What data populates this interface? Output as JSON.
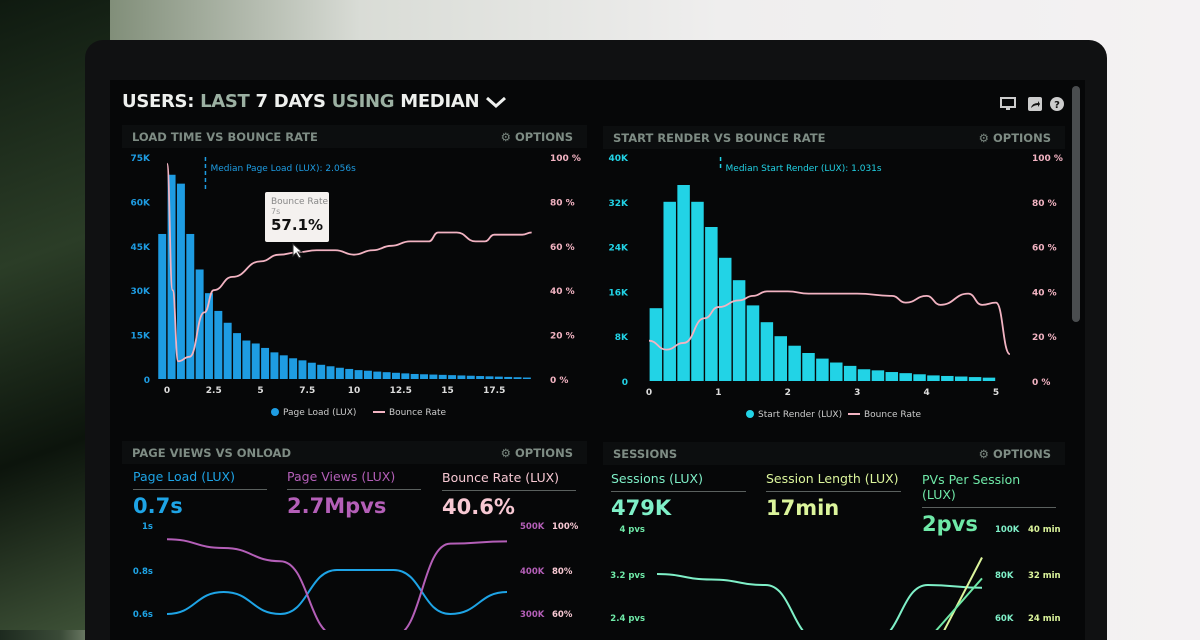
{
  "header": {
    "title_parts": [
      "USERS:",
      "LAST",
      "7 DAYS",
      "USING",
      "MEDIAN"
    ],
    "icons": [
      "monitor-icon",
      "share-icon",
      "help-icon"
    ]
  },
  "colors": {
    "load_bars": "#1e9ce2",
    "render_bars": "#22d3e6",
    "bounce": "#f2b3c2",
    "page_load": "#1ea4e6",
    "page_views": "#b45fb8",
    "bounce_lux": "#f7c8d3",
    "sessions": "#7ff0c8",
    "session_length": "#dcf59c",
    "pvs_per_session": "#6fe9a8"
  },
  "panels": {
    "load_time": {
      "title": "LOAD TIME VS BOUNCE RATE",
      "options": "OPTIONS",
      "tooltip": {
        "label": "Bounce Rate",
        "x": "7s",
        "value": "57.1%"
      }
    },
    "start_render": {
      "title": "START RENDER VS BOUNCE RATE",
      "options": "OPTIONS"
    },
    "page_views": {
      "title": "PAGE VIEWS VS ONLOAD",
      "options": "OPTIONS",
      "metrics": [
        {
          "label": "Page Load (LUX)",
          "value": "0.7s"
        },
        {
          "label": "Page Views (LUX)",
          "value": "2.7Mpvs"
        },
        {
          "label": "Bounce Rate (LUX)",
          "value": "40.6%"
        }
      ]
    },
    "sessions": {
      "title": "SESSIONS",
      "options": "OPTIONS",
      "metrics": [
        {
          "label": "Sessions (LUX)",
          "value": "479K"
        },
        {
          "label": "Session Length (LUX)",
          "value": "17min"
        },
        {
          "label": "PVs Per Session (LUX)",
          "value": "2pvs"
        }
      ]
    }
  },
  "chart_data": [
    {
      "type": "bar+line",
      "title": "LOAD TIME VS BOUNCE RATE",
      "annotation": "Median Page Load (LUX): 2.056s",
      "median": 2.056,
      "xlim": [
        0,
        19.75
      ],
      "xticks": [
        "0",
        "2.5",
        "5",
        "7.5",
        "10",
        "12.5",
        "15",
        "17.5"
      ],
      "xtick_values": [
        0,
        2.5,
        5,
        7.5,
        10,
        12.5,
        15,
        17.5
      ],
      "ylim_left": [
        0,
        75000
      ],
      "yticks_left": [
        "0",
        "15K",
        "30K",
        "45K",
        "60K",
        "75K"
      ],
      "ylim_right": [
        0,
        100
      ],
      "yticks_right": [
        "0 %",
        "20 %",
        "40 %",
        "60 %",
        "80 %",
        "100 %"
      ],
      "legend": [
        "Page Load (LUX)",
        "Bounce Rate"
      ],
      "legend_position": "bottom",
      "bar_width": 0.5,
      "bars": {
        "name": "Page Load (LUX)",
        "x": [
          0,
          0.5,
          1,
          1.5,
          2,
          2.5,
          3,
          3.5,
          4,
          4.5,
          5,
          5.5,
          6,
          6.5,
          7,
          7.5,
          8,
          8.5,
          9,
          9.5,
          10,
          10.5,
          11,
          11.5,
          12,
          12.5,
          13,
          13.5,
          14,
          14.5,
          15,
          15.5,
          16,
          16.5,
          17,
          17.5,
          18,
          18.5,
          19,
          19.5
        ],
        "y": [
          49000,
          69000,
          66000,
          49000,
          37000,
          29000,
          23000,
          19000,
          15500,
          13000,
          12000,
          10500,
          9000,
          8000,
          7000,
          6300,
          5500,
          4800,
          4300,
          3800,
          3400,
          3000,
          2800,
          2500,
          2300,
          2100,
          1900,
          1700,
          1600,
          1500,
          1400,
          1300,
          1200,
          1100,
          1000,
          900,
          800,
          700,
          600,
          500
        ]
      },
      "line": {
        "name": "Bounce Rate",
        "x": [
          0,
          0.3,
          0.6,
          1.2,
          2,
          2.5,
          3.5,
          5,
          6,
          7,
          8,
          9,
          10,
          11,
          12,
          13,
          14,
          14.5,
          15.5,
          16.5,
          17,
          17.5,
          19,
          19.5
        ],
        "y": [
          97,
          40,
          8,
          10,
          30,
          40,
          46,
          53,
          56,
          57.1,
          58,
          58,
          56,
          58,
          60,
          62,
          62,
          66,
          66,
          62,
          62,
          65,
          65,
          66
        ]
      }
    },
    {
      "type": "bar+line",
      "title": "START RENDER VS BOUNCE RATE",
      "annotation": "Median Start Render (LUX): 1.031s",
      "median": 1.031,
      "xlim": [
        0,
        5.2
      ],
      "xticks": [
        "0",
        "1",
        "2",
        "3",
        "4",
        "5"
      ],
      "xtick_values": [
        0,
        1,
        2,
        3,
        4,
        5
      ],
      "ylim_left": [
        0,
        40000
      ],
      "yticks_left": [
        "0",
        "8K",
        "16K",
        "24K",
        "32K",
        "40K"
      ],
      "ylim_right": [
        0,
        100
      ],
      "yticks_right": [
        "0 %",
        "20 %",
        "40 %",
        "60 %",
        "80 %",
        "100 %"
      ],
      "legend": [
        "Start Render (LUX)",
        "Bounce Rate"
      ],
      "legend_position": "bottom",
      "bar_width": 0.2,
      "bars": {
        "name": "Start Render (LUX)",
        "x": [
          0.2,
          0.4,
          0.6,
          0.8,
          1,
          1.2,
          1.4,
          1.6,
          1.8,
          2,
          2.2,
          2.4,
          2.6,
          2.8,
          3,
          3.2,
          3.4,
          3.6,
          3.8,
          4,
          4.2,
          4.4,
          4.6,
          4.8,
          5
        ],
        "y": [
          13000,
          32000,
          35000,
          32000,
          27500,
          22000,
          18000,
          13500,
          10500,
          8000,
          6300,
          5000,
          4000,
          3300,
          2700,
          2100,
          1900,
          1600,
          1400,
          1200,
          1000,
          900,
          800,
          700,
          600
        ]
      },
      "line": {
        "name": "Bounce Rate",
        "x": [
          0,
          0.25,
          0.5,
          0.8,
          1,
          1.3,
          1.5,
          1.7,
          2,
          2.3,
          3,
          3.5,
          3.7,
          4,
          4.2,
          4.6,
          4.8,
          5,
          5.2
        ],
        "y": [
          18,
          14,
          17,
          28,
          33,
          36,
          38,
          40,
          40,
          39,
          39,
          38,
          35,
          38,
          34,
          39,
          34,
          35,
          12
        ]
      }
    },
    {
      "type": "line",
      "title": "PAGE VIEWS VS ONLOAD",
      "yticks_left": [
        "1s",
        "0.8s",
        "0.6s"
      ],
      "ytick_left_values": [
        1,
        0.8,
        0.6
      ],
      "yticks_right_a": [
        "500K",
        "400K",
        "300K"
      ],
      "yticks_right_b": [
        "100%",
        "80%",
        "60%"
      ],
      "series": [
        {
          "name": "Page Load (LUX)",
          "unit": "s",
          "y": [
            0.6,
            0.7,
            0.6,
            0.8,
            0.8,
            0.6,
            0.7
          ]
        },
        {
          "name": "Page Views (LUX)",
          "unit": "pvs",
          "y": [
            470000,
            450000,
            420000,
            250000,
            250000,
            460000,
            465000
          ]
        }
      ]
    },
    {
      "type": "line",
      "title": "SESSIONS",
      "yticks_left": [
        "4 pvs",
        "3.2 pvs",
        "2.4 pvs"
      ],
      "ytick_left_values": [
        4,
        3.2,
        2.4
      ],
      "yticks_right_a": [
        "100K",
        "80K",
        "60K"
      ],
      "yticks_right_b": [
        "40 min",
        "32 min",
        "24 min"
      ],
      "series": [
        {
          "name": "PVs Per Session (LUX)",
          "unit": "pvs",
          "y": [
            3.2,
            3.1,
            3.0,
            2.0,
            2.0,
            3.0,
            2.95
          ]
        },
        {
          "name": "Session Length (LUX)",
          "unit": "min",
          "y": [
            null,
            null,
            null,
            null,
            null,
            16,
            35
          ]
        },
        {
          "name": "Sessions (LUX)",
          "unit": "sessions",
          "y": [
            null,
            null,
            null,
            null,
            null,
            50000,
            78000
          ]
        }
      ]
    }
  ]
}
